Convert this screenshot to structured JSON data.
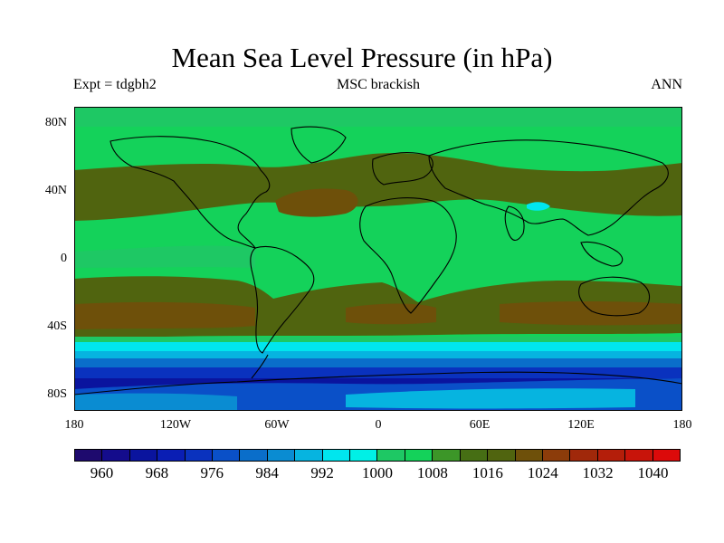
{
  "title": "Mean Sea Level Pressure (in hPa)",
  "subtitle_left": "Expt = tdgbh2",
  "subtitle_center": "MSC brackish",
  "subtitle_right": "ANN",
  "lat_labels": [
    "80N",
    "40N",
    "0",
    "40S",
    "80S"
  ],
  "lon_labels": [
    "180",
    "120W",
    "60W",
    "0",
    "60E",
    "120E",
    "180"
  ],
  "colorbar": {
    "colors": [
      "#1e0a6e",
      "#140c8c",
      "#0a149e",
      "#0a1eb4",
      "#0a32be",
      "#0a50c8",
      "#0a6eca",
      "#0a8cd2",
      "#06b4e0",
      "#00e6ee",
      "#00f0e6",
      "#1ec864",
      "#14d25a",
      "#3c9628",
      "#466e14",
      "#50640f",
      "#6e500a",
      "#8c3c0a",
      "#a0280a",
      "#b41e0a",
      "#c8140a",
      "#dc0a0a"
    ],
    "labels": [
      "960",
      "968",
      "976",
      "984",
      "992",
      "1000",
      "1008",
      "1016",
      "1024",
      "1032",
      "1040"
    ]
  }
}
